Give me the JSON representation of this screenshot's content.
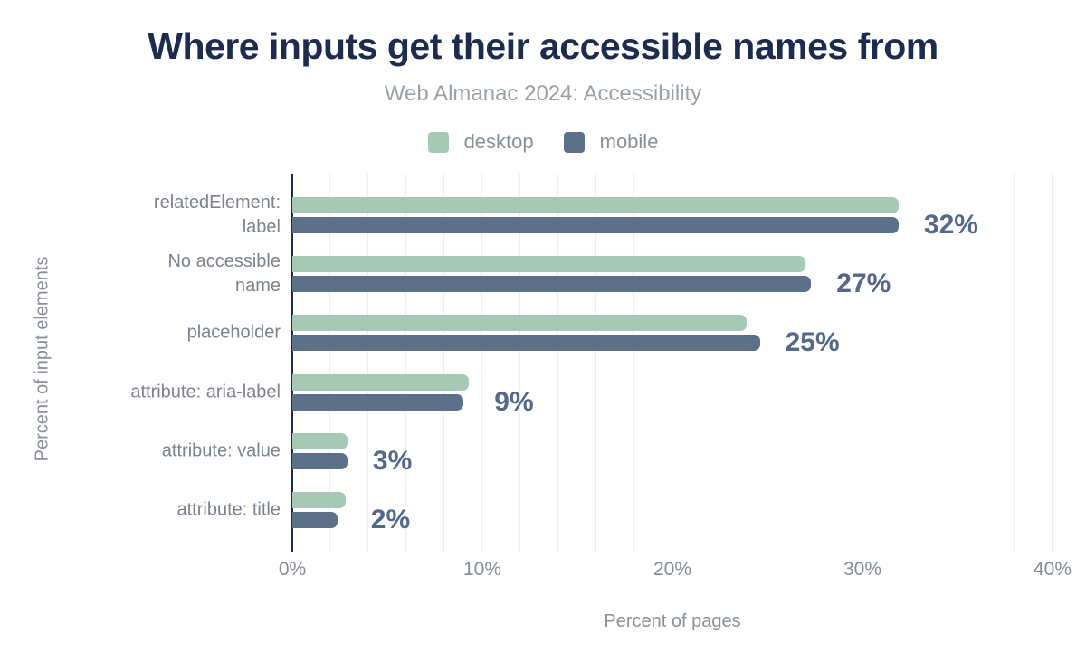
{
  "title": "Where inputs get their accessible names from",
  "subtitle": "Web Almanac 2024: Accessibility",
  "legend": [
    {
      "label": "desktop",
      "color": "#a6c9b5"
    },
    {
      "label": "mobile",
      "color": "#5d7089"
    }
  ],
  "colors": {
    "title": "#1d2c4e",
    "subtitle_text": "#9aa0a6",
    "category_text": "#7d828c",
    "tick_text": "#878d96",
    "value_label_text": "#55688c",
    "axis_line": "#1e2e4f",
    "gridline": "#ededf1",
    "desktop_bar": "#a6c9b5",
    "mobile_bar": "#5d7089"
  },
  "chart_data": {
    "type": "bar",
    "orientation": "horizontal",
    "title": "Where inputs get their accessible names from",
    "subtitle": "Web Almanac 2024: Accessibility",
    "xlabel": "Percent of pages",
    "ylabel": "Percent of input elements",
    "xlim": [
      0,
      40
    ],
    "x_ticks": [
      "0%",
      "10%",
      "20%",
      "30%",
      "40%"
    ],
    "grid": "vertical, every 2%",
    "legend_position": "top-center",
    "categories": [
      "relatedElement:\nlabel",
      "No accessible\nname",
      "placeholder",
      "attribute: aria-label",
      "attribute: value",
      "attribute: title"
    ],
    "series": [
      {
        "name": "desktop",
        "values": [
          31.9,
          27.0,
          23.9,
          9.3,
          2.9,
          2.8
        ]
      },
      {
        "name": "mobile",
        "values": [
          31.9,
          27.3,
          24.6,
          9.0,
          2.9,
          2.4
        ]
      }
    ],
    "value_labels": [
      "32%",
      "27%",
      "25%",
      "9%",
      "3%",
      "2%"
    ]
  }
}
